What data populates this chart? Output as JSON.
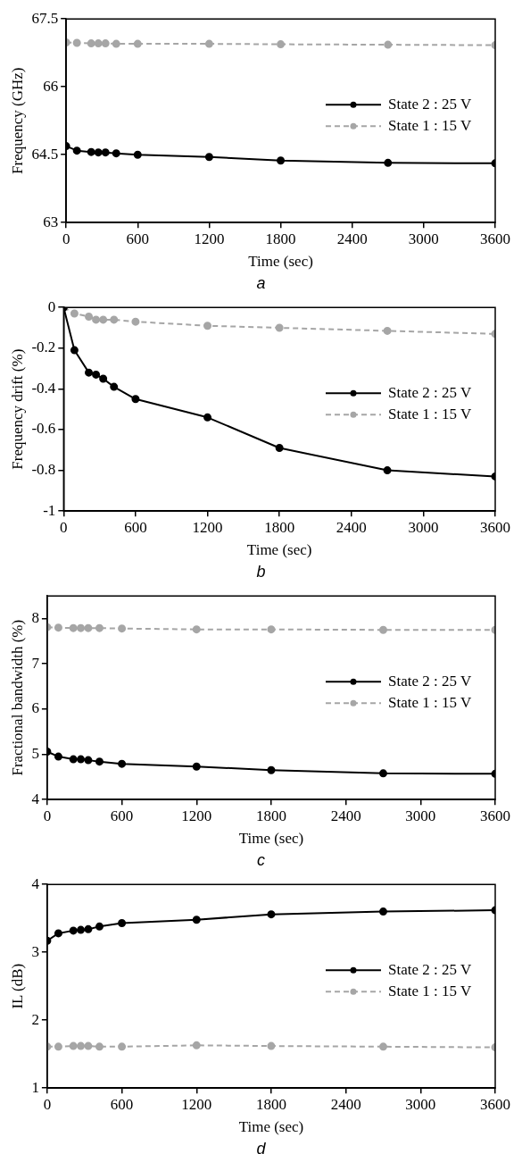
{
  "chart_data": [
    {
      "type": "line",
      "xlabel": "Time (sec)",
      "ylabel": "Frequency (GHz)",
      "annotations": [
        "a"
      ],
      "x": [
        0,
        90,
        210,
        270,
        330,
        420,
        600,
        1200,
        1800,
        2700,
        3600
      ],
      "xlim": [
        0,
        3600
      ],
      "xticks": [
        0,
        600,
        1200,
        1800,
        2400,
        3000,
        3600
      ],
      "ylim": [
        63,
        67.5
      ],
      "yticks": [
        63,
        {
          "value": 64.5,
          "label": "64.5"
        },
        66,
        {
          "value": 67.5,
          "label": "67.5"
        }
      ],
      "grid": false,
      "legend": "right",
      "marker": "circle",
      "series": [
        {
          "name": "State 2 : 25 V",
          "color": "#000000",
          "line_style": "solid",
          "values": [
            64.69,
            64.59,
            64.56,
            64.55,
            64.55,
            64.53,
            64.5,
            64.45,
            64.37,
            64.32,
            64.31
          ]
        },
        {
          "name": "State 1 : 15 V",
          "color": "#a6a6a6",
          "line_style": "dashed",
          "values": [
            66.98,
            66.97,
            66.96,
            66.96,
            66.96,
            66.95,
            66.95,
            66.95,
            66.94,
            66.93,
            66.92
          ]
        }
      ]
    },
    {
      "type": "line",
      "xlabel": "Time (sec)",
      "ylabel": "Frequency drift (%)",
      "annotations": [
        "b"
      ],
      "x": [
        0,
        90,
        210,
        270,
        330,
        420,
        600,
        1200,
        1800,
        2700,
        3600
      ],
      "xlim": [
        0,
        3600
      ],
      "xticks": [
        0,
        600,
        1200,
        1800,
        2400,
        3000,
        3600
      ],
      "ylim": [
        -1,
        0
      ],
      "yticks": [
        -1,
        -0.8,
        -0.6,
        -0.4,
        -0.2,
        0
      ],
      "grid": false,
      "legend": "right",
      "marker": "circle",
      "series": [
        {
          "name": "State 2 : 25 V",
          "color": "#000000",
          "line_style": "solid",
          "values": [
            0,
            -0.21,
            -0.32,
            -0.33,
            -0.35,
            -0.39,
            -0.45,
            -0.54,
            -0.69,
            -0.8,
            -0.83
          ]
        },
        {
          "name": "State 1 : 15 V",
          "color": "#a6a6a6",
          "line_style": "dashed",
          "values": [
            0,
            -0.03,
            -0.045,
            -0.06,
            -0.06,
            -0.06,
            -0.07,
            -0.09,
            -0.1,
            -0.115,
            -0.13
          ]
        }
      ]
    },
    {
      "type": "line",
      "xlabel": "Time (sec)",
      "ylabel": "Fractional bandwidth (%)",
      "annotations": [
        "c"
      ],
      "x": [
        0,
        90,
        210,
        270,
        330,
        420,
        600,
        1200,
        1800,
        2700,
        3600
      ],
      "xlim": [
        0,
        3600
      ],
      "xticks": [
        0,
        600,
        1200,
        1800,
        2400,
        3000,
        3600
      ],
      "ylim": [
        4,
        8.5
      ],
      "yticks": [
        4,
        5,
        6,
        7,
        8
      ],
      "grid": false,
      "legend": "right",
      "marker": "circle",
      "series": [
        {
          "name": "State 2 : 25 V",
          "color": "#000000",
          "line_style": "solid",
          "values": [
            5.06,
            4.95,
            4.89,
            4.89,
            4.87,
            4.84,
            4.79,
            4.73,
            4.65,
            4.58,
            4.57
          ]
        },
        {
          "name": "State 1 : 15 V",
          "color": "#a6a6a6",
          "line_style": "dashed",
          "values": [
            7.81,
            7.8,
            7.79,
            7.79,
            7.79,
            7.79,
            7.78,
            7.76,
            7.76,
            7.75,
            7.75
          ]
        }
      ]
    },
    {
      "type": "line",
      "xlabel": "Time (sec)",
      "ylabel": "IL (dB)",
      "annotations": [
        "d"
      ],
      "x": [
        0,
        90,
        210,
        270,
        330,
        420,
        600,
        1200,
        1800,
        2700,
        3600
      ],
      "xlim": [
        0,
        3600
      ],
      "xticks": [
        0,
        600,
        1200,
        1800,
        2400,
        3000,
        3600
      ],
      "ylim": [
        1,
        4
      ],
      "yticks": [
        1,
        2,
        3,
        4
      ],
      "grid": false,
      "legend": "right",
      "marker": "circle",
      "series": [
        {
          "name": "State 2 : 25 V",
          "color": "#000000",
          "line_style": "solid",
          "values": [
            3.17,
            3.28,
            3.32,
            3.33,
            3.34,
            3.38,
            3.43,
            3.48,
            3.56,
            3.6,
            3.62
          ]
        },
        {
          "name": "State 1 : 15 V",
          "color": "#a6a6a6",
          "line_style": "dashed",
          "values": [
            1.61,
            1.61,
            1.62,
            1.62,
            1.62,
            1.61,
            1.61,
            1.63,
            1.62,
            1.61,
            1.6
          ]
        }
      ]
    }
  ]
}
